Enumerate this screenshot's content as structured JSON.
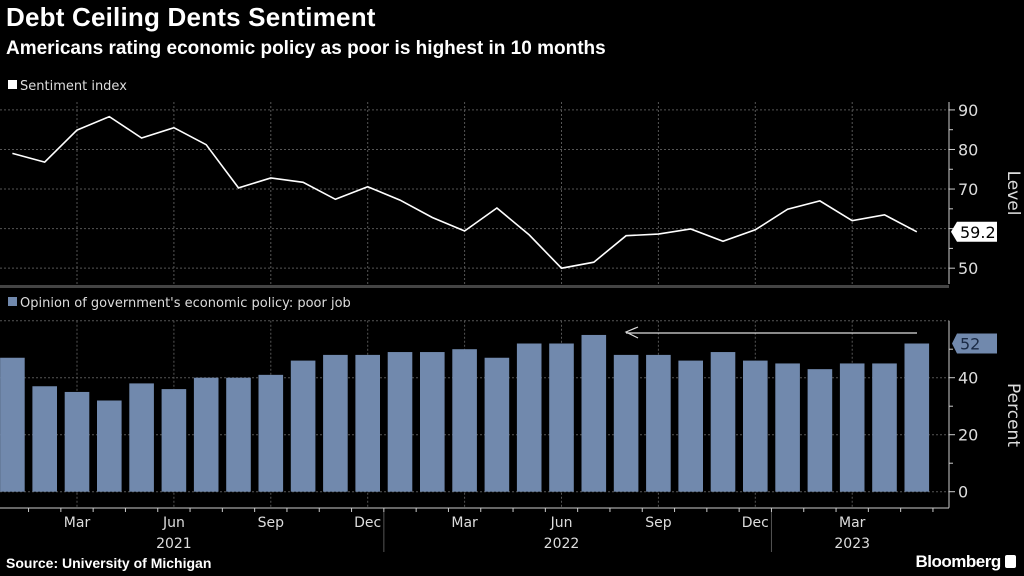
{
  "title": "Debt Ceiling Dents Sentiment",
  "subtitle": "Americans rating economic policy as poor is highest in 10 months",
  "source": "Source: University of Michigan",
  "brand": "Bloomberg",
  "chart_data": [
    {
      "type": "line",
      "legend": "Sentiment index",
      "legend_placement": "top-left",
      "ylabel": "Level",
      "ylim": [
        46,
        92
      ],
      "yticks": [
        50,
        60,
        70,
        80,
        90
      ],
      "ytick_labels": [
        "50",
        "",
        "70",
        "80",
        "90"
      ],
      "grid": true,
      "color": "#ffffff",
      "last_value_label": "59.2",
      "x": [
        "2021-01",
        "2021-02",
        "2021-03",
        "2021-04",
        "2021-05",
        "2021-06",
        "2021-07",
        "2021-08",
        "2021-09",
        "2021-10",
        "2021-11",
        "2021-12",
        "2022-01",
        "2022-02",
        "2022-03",
        "2022-04",
        "2022-05",
        "2022-06",
        "2022-07",
        "2022-08",
        "2022-09",
        "2022-10",
        "2022-11",
        "2022-12",
        "2023-01",
        "2023-02",
        "2023-03",
        "2023-04",
        "2023-05"
      ],
      "values": [
        79.0,
        76.8,
        84.9,
        88.3,
        82.9,
        85.5,
        81.2,
        70.3,
        72.8,
        71.7,
        67.4,
        70.6,
        67.2,
        62.8,
        59.4,
        65.2,
        58.4,
        50.0,
        51.5,
        58.2,
        58.6,
        59.9,
        56.8,
        59.7,
        64.9,
        67.0,
        62.0,
        63.5,
        59.2
      ]
    },
    {
      "type": "bar",
      "legend": "Opinion of government's economic policy: poor job",
      "legend_placement": "top-left",
      "ylabel": "Percent",
      "ylim": [
        0,
        60
      ],
      "yticks": [
        0,
        20,
        40
      ],
      "grid": true,
      "color": "#7189ad",
      "last_value_label": "52",
      "annotation": "arrow from latest bar back to Jul 2022 (highest in 10 months)",
      "x": [
        "2021-01",
        "2021-02",
        "2021-03",
        "2021-04",
        "2021-05",
        "2021-06",
        "2021-07",
        "2021-08",
        "2021-09",
        "2021-10",
        "2021-11",
        "2021-12",
        "2022-01",
        "2022-02",
        "2022-03",
        "2022-04",
        "2022-05",
        "2022-06",
        "2022-07",
        "2022-08",
        "2022-09",
        "2022-10",
        "2022-11",
        "2022-12",
        "2023-01",
        "2023-02",
        "2023-03",
        "2023-04",
        "2023-05"
      ],
      "values": [
        47,
        37,
        35,
        32,
        38,
        36,
        40,
        40,
        41,
        46,
        48,
        48,
        49,
        49,
        50,
        47,
        52,
        52,
        55,
        48,
        48,
        46,
        49,
        46,
        45,
        43,
        45,
        45,
        52
      ]
    }
  ],
  "xaxis": {
    "month_labels": [
      {
        "label": "Mar",
        "index": 2
      },
      {
        "label": "Jun",
        "index": 5
      },
      {
        "label": "Sep",
        "index": 8
      },
      {
        "label": "Dec",
        "index": 11
      },
      {
        "label": "Mar",
        "index": 14
      },
      {
        "label": "Jun",
        "index": 17
      },
      {
        "label": "Sep",
        "index": 20
      },
      {
        "label": "Dec",
        "index": 23
      },
      {
        "label": "Mar",
        "index": 26
      }
    ],
    "year_labels": [
      {
        "label": "2021",
        "index": 5
      },
      {
        "label": "2022",
        "index": 17
      },
      {
        "label": "2023",
        "index": 26
      }
    ]
  }
}
